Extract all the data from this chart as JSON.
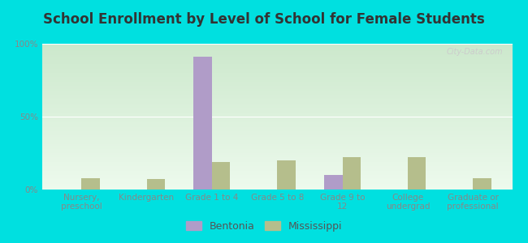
{
  "title": "School Enrollment by Level of School for Female Students",
  "categories": [
    "Nursery,\npreschool",
    "Kindergarten",
    "Grade 1 to 4",
    "Grade 5 to 8",
    "Grade 9 to\n12",
    "College\nundergrad",
    "Graduate or\nprofessional"
  ],
  "bentonia": [
    0,
    0,
    91,
    0,
    10,
    0,
    0
  ],
  "mississippi": [
    8,
    7,
    19,
    20,
    22,
    22,
    8
  ],
  "bentonia_color": "#b09cc8",
  "mississippi_color": "#b5be8c",
  "title_fontsize": 12,
  "tick_fontsize": 7.5,
  "ylabel_ticks": [
    "0%",
    "50%",
    "100%"
  ],
  "ylabel_values": [
    0,
    50,
    100
  ],
  "ylim": [
    0,
    100
  ],
  "bar_width": 0.28,
  "background_outer": "#00e0e0",
  "background_inner_top": "#cce8cc",
  "background_inner_bottom": "#edfaed",
  "watermark": "City-Data.com"
}
